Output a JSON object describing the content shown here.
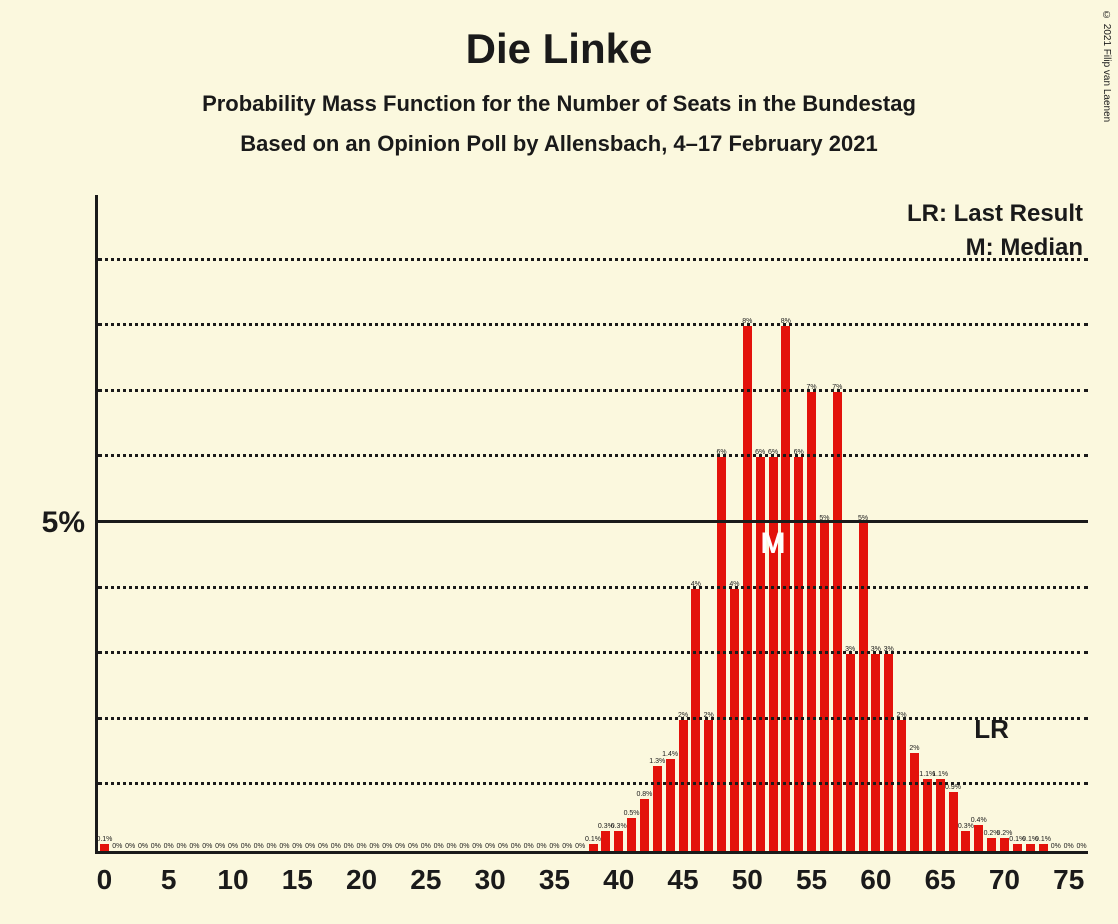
{
  "title": "Die Linke",
  "subtitle1": "Probability Mass Function for the Number of Seats in the Bundestag",
  "subtitle2": "Based on an Opinion Poll by Allensbach, 4–17 February 2021",
  "copyright": "© 2021 Filip van Laenen",
  "legend": {
    "lr": "LR: Last Result",
    "m": "M: Median"
  },
  "chart": {
    "type": "bar",
    "background_color": "#fbf8de",
    "bar_color": "#e3120b",
    "grid_color": "#1a1a1a",
    "axis_color": "#1a1a1a",
    "text_color": "#1a1a1a",
    "marker_m_color": "#ffffff",
    "x_min": 0,
    "x_max": 76,
    "x_tick_step": 5,
    "x_ticks": [
      0,
      5,
      10,
      15,
      20,
      25,
      30,
      35,
      40,
      45,
      50,
      55,
      60,
      65,
      70,
      75
    ],
    "y_min": 0,
    "y_max": 10,
    "y_tick_major": 5,
    "y_tick_label": "5%",
    "y_gridlines": [
      1,
      2,
      3,
      4,
      5,
      6,
      7,
      8,
      9
    ],
    "bar_width_ratio": 0.7,
    "median_x": 52,
    "median_label": "M",
    "last_result_x": 69,
    "last_result_label": "LR",
    "title_fontsize": 42,
    "subtitle_fontsize": 22,
    "axis_label_fontsize": 28,
    "legend_fontsize": 24,
    "bar_label_fontsize": 7,
    "bars": [
      {
        "x": 0,
        "v": 0.1,
        "l": "0.1%"
      },
      {
        "x": 1,
        "v": 0,
        "l": "0%"
      },
      {
        "x": 2,
        "v": 0,
        "l": "0%"
      },
      {
        "x": 3,
        "v": 0,
        "l": "0%"
      },
      {
        "x": 4,
        "v": 0,
        "l": "0%"
      },
      {
        "x": 5,
        "v": 0,
        "l": "0%"
      },
      {
        "x": 6,
        "v": 0,
        "l": "0%"
      },
      {
        "x": 7,
        "v": 0,
        "l": "0%"
      },
      {
        "x": 8,
        "v": 0,
        "l": "0%"
      },
      {
        "x": 9,
        "v": 0,
        "l": "0%"
      },
      {
        "x": 10,
        "v": 0,
        "l": "0%"
      },
      {
        "x": 11,
        "v": 0,
        "l": "0%"
      },
      {
        "x": 12,
        "v": 0,
        "l": "0%"
      },
      {
        "x": 13,
        "v": 0,
        "l": "0%"
      },
      {
        "x": 14,
        "v": 0,
        "l": "0%"
      },
      {
        "x": 15,
        "v": 0,
        "l": "0%"
      },
      {
        "x": 16,
        "v": 0,
        "l": "0%"
      },
      {
        "x": 17,
        "v": 0,
        "l": "0%"
      },
      {
        "x": 18,
        "v": 0,
        "l": "0%"
      },
      {
        "x": 19,
        "v": 0,
        "l": "0%"
      },
      {
        "x": 20,
        "v": 0,
        "l": "0%"
      },
      {
        "x": 21,
        "v": 0,
        "l": "0%"
      },
      {
        "x": 22,
        "v": 0,
        "l": "0%"
      },
      {
        "x": 23,
        "v": 0,
        "l": "0%"
      },
      {
        "x": 24,
        "v": 0,
        "l": "0%"
      },
      {
        "x": 25,
        "v": 0,
        "l": "0%"
      },
      {
        "x": 26,
        "v": 0,
        "l": "0%"
      },
      {
        "x": 27,
        "v": 0,
        "l": "0%"
      },
      {
        "x": 28,
        "v": 0,
        "l": "0%"
      },
      {
        "x": 29,
        "v": 0,
        "l": "0%"
      },
      {
        "x": 30,
        "v": 0,
        "l": "0%"
      },
      {
        "x": 31,
        "v": 0,
        "l": "0%"
      },
      {
        "x": 32,
        "v": 0,
        "l": "0%"
      },
      {
        "x": 33,
        "v": 0,
        "l": "0%"
      },
      {
        "x": 34,
        "v": 0,
        "l": "0%"
      },
      {
        "x": 35,
        "v": 0,
        "l": "0%"
      },
      {
        "x": 36,
        "v": 0,
        "l": "0%"
      },
      {
        "x": 37,
        "v": 0,
        "l": "0%"
      },
      {
        "x": 38,
        "v": 0.1,
        "l": "0.1%"
      },
      {
        "x": 39,
        "v": 0.3,
        "l": "0.3%"
      },
      {
        "x": 40,
        "v": 0.3,
        "l": "0.3%"
      },
      {
        "x": 41,
        "v": 0.5,
        "l": "0.5%"
      },
      {
        "x": 42,
        "v": 0.8,
        "l": "0.8%"
      },
      {
        "x": 43,
        "v": 1.3,
        "l": "1.3%"
      },
      {
        "x": 44,
        "v": 1.4,
        "l": "1.4%"
      },
      {
        "x": 45,
        "v": 2,
        "l": "2%"
      },
      {
        "x": 46,
        "v": 4,
        "l": "4%"
      },
      {
        "x": 47,
        "v": 2,
        "l": "2%"
      },
      {
        "x": 48,
        "v": 6,
        "l": "6%"
      },
      {
        "x": 49,
        "v": 4,
        "l": "4%"
      },
      {
        "x": 50,
        "v": 8,
        "l": "8%"
      },
      {
        "x": 51,
        "v": 6,
        "l": "6%"
      },
      {
        "x": 52,
        "v": 6,
        "l": "6%"
      },
      {
        "x": 53,
        "v": 8,
        "l": "8%"
      },
      {
        "x": 54,
        "v": 6,
        "l": "6%"
      },
      {
        "x": 55,
        "v": 7,
        "l": "7%"
      },
      {
        "x": 56,
        "v": 5,
        "l": "5%"
      },
      {
        "x": 57,
        "v": 7,
        "l": "7%"
      },
      {
        "x": 58,
        "v": 3,
        "l": "3%"
      },
      {
        "x": 59,
        "v": 5,
        "l": "5%"
      },
      {
        "x": 60,
        "v": 3,
        "l": "3%"
      },
      {
        "x": 61,
        "v": 3,
        "l": "3%"
      },
      {
        "x": 62,
        "v": 2,
        "l": "2%"
      },
      {
        "x": 63,
        "v": 1.5,
        "l": "2%"
      },
      {
        "x": 64,
        "v": 1.1,
        "l": "1.1%"
      },
      {
        "x": 65,
        "v": 1.1,
        "l": "1.1%"
      },
      {
        "x": 66,
        "v": 0.9,
        "l": "0.9%"
      },
      {
        "x": 67,
        "v": 0.3,
        "l": "0.3%"
      },
      {
        "x": 68,
        "v": 0.4,
        "l": "0.4%"
      },
      {
        "x": 69,
        "v": 0.2,
        "l": "0.2%"
      },
      {
        "x": 70,
        "v": 0.2,
        "l": "0.2%"
      },
      {
        "x": 71,
        "v": 0.1,
        "l": "0.1%"
      },
      {
        "x": 72,
        "v": 0.1,
        "l": "0.1%"
      },
      {
        "x": 73,
        "v": 0.1,
        "l": "0.1%"
      },
      {
        "x": 74,
        "v": 0,
        "l": "0%"
      },
      {
        "x": 75,
        "v": 0,
        "l": "0%"
      },
      {
        "x": 76,
        "v": 0,
        "l": "0%"
      }
    ]
  }
}
